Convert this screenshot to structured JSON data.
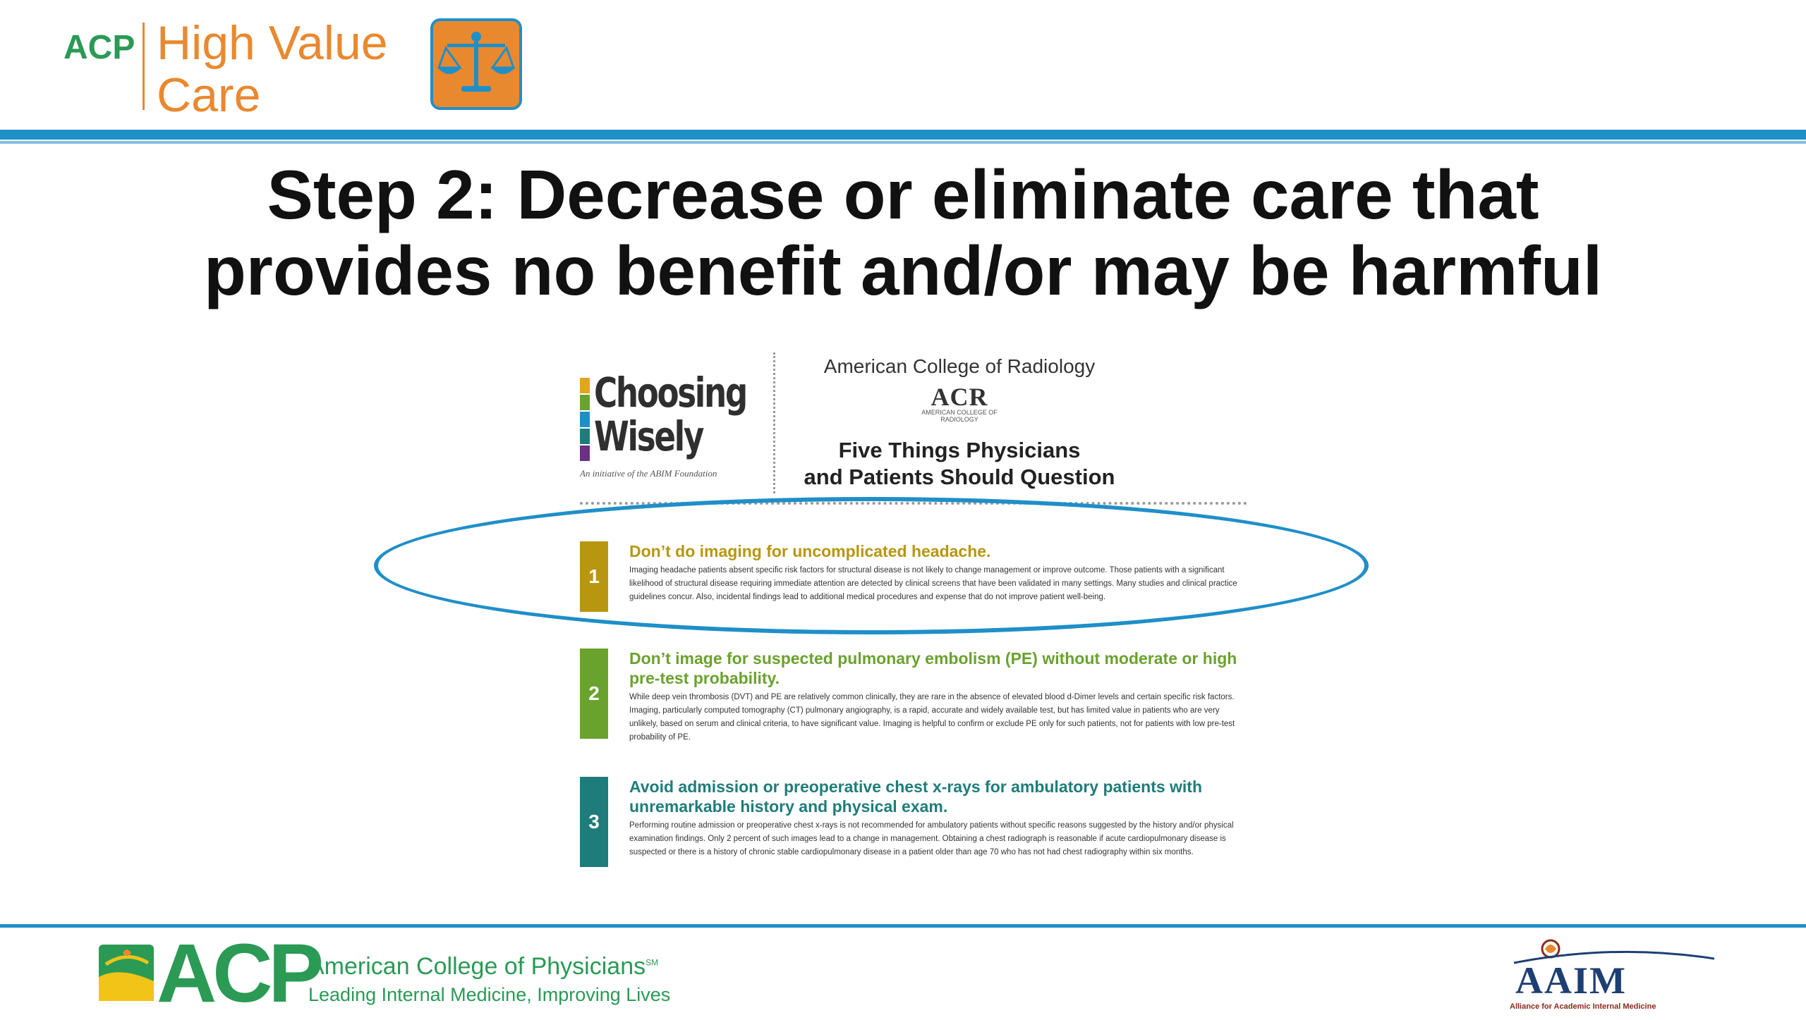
{
  "header": {
    "acp_short": "ACP",
    "brand_line1": "High Value",
    "brand_line2": "Care",
    "scale_icon": "balance-scale-icon"
  },
  "title": {
    "line1": "Step 2: Decrease or eliminate care that",
    "line2": "provides no benefit and/or may be harmful"
  },
  "document": {
    "choosing_wisely": {
      "line1": "Choosing",
      "line2": "Wisely",
      "tagline": "An initiative of the ABIM Foundation"
    },
    "acr": {
      "name": "American College of Radiology",
      "logo": "ACR",
      "logo_sub": "AMERICAN COLLEGE OF RADIOLOGY"
    },
    "heading": {
      "line1": "Five Things Physicians",
      "line2": "and Patients Should Question"
    },
    "items": [
      {
        "number": "1",
        "color": "#b8960f",
        "heading": "Don’t do imaging for uncomplicated headache.",
        "body": "Imaging headache patients absent specific risk factors for structural disease is not likely to change management or improve outcome. Those patients with a significant likelihood of structural disease requiring immediate attention are detected by clinical screens that have been validated in many settings. Many studies and clinical practice guidelines concur. Also, incidental findings lead to additional medical procedures and expense that do not improve patient well-being."
      },
      {
        "number": "2",
        "color": "#6aa22e",
        "heading": "Don’t image for suspected pulmonary embolism (PE) without moderate or high pre-test probability.",
        "body": "While deep vein thrombosis (DVT) and PE are relatively common clinically, they are rare in the absence of elevated blood d-Dimer levels and certain specific risk factors. Imaging, particularly computed tomography (CT) pulmonary angiography, is a rapid, accurate and widely available test, but has limited value in patients who are very unlikely, based on serum and clinical criteria, to have significant value. Imaging is helpful to confirm or exclude PE only for such patients, not for patients with low pre-test probability of PE."
      },
      {
        "number": "3",
        "color": "#1e7d7a",
        "heading": "Avoid admission or preoperative chest x-rays for ambulatory patients with unremarkable history and physical exam.",
        "body": "Performing routine admission or preoperative chest x-rays is not recommended for ambulatory patients without specific reasons suggested by the history and/or physical examination findings. Only 2 percent of such images lead to a change in management. Obtaining a chest radiograph is reasonable if acute cardiopulmonary disease is suspected or there is a history of chronic stable cardiopulmonary disease in a patient older than age 70 who has not had chest radiography within six months."
      }
    ]
  },
  "footer": {
    "acp_big": "ACP",
    "acp_name": "American College of Physicians",
    "acp_sm": "SM",
    "acp_tagline": "Leading Internal Medicine, Improving Lives",
    "aaim": "AAIM",
    "aaim_sub": "Alliance for Academic Internal Medicine"
  },
  "colors": {
    "accent_blue": "#1f8fc8",
    "acp_green": "#2a9a55",
    "hvc_orange": "#e9892f"
  }
}
